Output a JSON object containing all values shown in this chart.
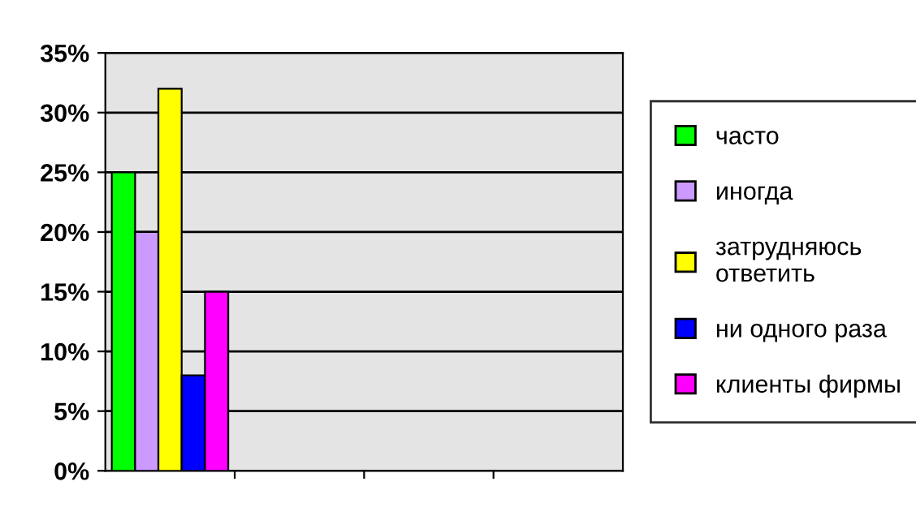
{
  "chart_data": {
    "type": "bar",
    "categories": [
      null,
      null,
      null,
      null
    ],
    "series": [
      {
        "name": "часто",
        "color": "#00ff00",
        "values": [
          25,
          null,
          null,
          null
        ]
      },
      {
        "name": "иногда",
        "color": "#cc99ff",
        "values": [
          20,
          null,
          null,
          null
        ]
      },
      {
        "name": "затрудняюсь\nответить",
        "color": "#ffff00",
        "values": [
          32,
          null,
          null,
          null
        ]
      },
      {
        "name": "ни одного раза",
        "color": "#0000ff",
        "values": [
          8,
          null,
          null,
          null
        ]
      },
      {
        "name": "клиенты фирмы",
        "color": "#ff00ff",
        "values": [
          15,
          null,
          null,
          null
        ]
      }
    ],
    "ylim": [
      0,
      35
    ],
    "yticks": [
      {
        "value": 0,
        "label": "0%"
      },
      {
        "value": 5,
        "label": "5%"
      },
      {
        "value": 10,
        "label": "10%"
      },
      {
        "value": 15,
        "label": "15%"
      },
      {
        "value": 20,
        "label": "20%"
      },
      {
        "value": 25,
        "label": "25%"
      },
      {
        "value": 30,
        "label": "30%"
      },
      {
        "value": 35,
        "label": "35%"
      }
    ],
    "grid": "y",
    "legend": "right"
  }
}
